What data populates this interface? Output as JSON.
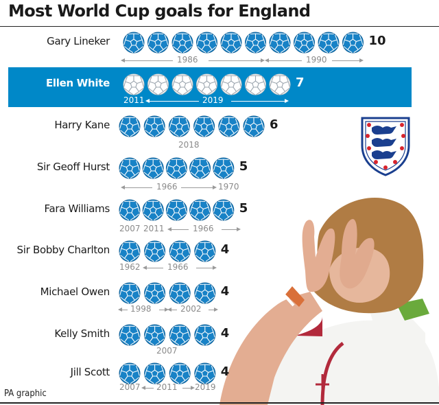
{
  "title": "Most World Cup goals for England",
  "credit": "PA graphic",
  "colors": {
    "highlight": "#0088c8",
    "ball_fill": "#1882c6",
    "ball_stroke": "#ffffff",
    "text": "#1a1a1a",
    "year_text": "#8a8a8a"
  },
  "icons": {
    "goal_marker": "football-icon",
    "badge": "england-crest-icon",
    "photo": "player-celebration-photo"
  },
  "chart_data": {
    "type": "pictograph",
    "title": "Most World Cup goals for England",
    "unit": "one football = one goal",
    "highlighted": "Ellen White",
    "rows": [
      {
        "name": "Gary Lineker",
        "goals": 10,
        "years": [
          "1986",
          "1990"
        ]
      },
      {
        "name": "Ellen White",
        "goals": 7,
        "years": [
          "2011",
          "2019"
        ]
      },
      {
        "name": "Harry Kane",
        "goals": 6,
        "years": [
          "2018"
        ]
      },
      {
        "name": "Sir Geoff Hurst",
        "goals": 5,
        "years": [
          "1966",
          "1970"
        ]
      },
      {
        "name": "Fara Williams",
        "goals": 5,
        "years": [
          "2007",
          "2011",
          "1966"
        ]
      },
      {
        "name": "Sir Bobby Charlton",
        "goals": 4,
        "years": [
          "1962",
          "1966"
        ]
      },
      {
        "name": "Michael Owen",
        "goals": 4,
        "years": [
          "1998",
          "2002"
        ]
      },
      {
        "name": "Kelly Smith",
        "goals": 4,
        "years": [
          "2007"
        ]
      },
      {
        "name": "Jill Scott",
        "goals": 4,
        "years": [
          "2007",
          "2011",
          "2019"
        ]
      }
    ]
  }
}
